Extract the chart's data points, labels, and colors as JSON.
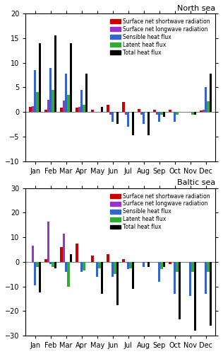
{
  "months": [
    "Jan",
    "Feb",
    "Mar",
    "Apr",
    "May",
    "Jun",
    "Jul",
    "Aug",
    "Sep",
    "Oct",
    "Nov",
    "Dec"
  ],
  "north_sea": {
    "shortwave": [
      1.0,
      0.5,
      0.8,
      0.9,
      0.5,
      1.5,
      2.0,
      0.6,
      0.5,
      0.4,
      0.0,
      0.3
    ],
    "longwave": [
      1.2,
      2.5,
      2.3,
      1.0,
      0.0,
      -0.5,
      -0.5,
      -0.5,
      -0.5,
      0.0,
      0.0,
      0.5
    ],
    "sensible": [
      8.5,
      9.0,
      7.8,
      4.5,
      0.0,
      -2.0,
      -3.0,
      -2.5,
      -2.0,
      -2.0,
      0.0,
      5.0
    ],
    "latent": [
      4.0,
      4.5,
      3.5,
      1.5,
      0.0,
      0.0,
      0.0,
      0.0,
      -0.5,
      -0.5,
      -0.5,
      2.2
    ],
    "total": [
      14.0,
      15.5,
      14.0,
      7.8,
      1.0,
      -2.5,
      -4.8,
      -4.8,
      -1.0,
      0.0,
      -0.5,
      7.8
    ]
  },
  "baltic_sea": {
    "shortwave": [
      0.0,
      1.0,
      6.0,
      7.5,
      2.5,
      3.0,
      1.0,
      0.0,
      0.0,
      -1.0,
      0.0,
      0.0
    ],
    "longwave": [
      6.5,
      16.5,
      11.5,
      0.0,
      0.0,
      0.0,
      0.0,
      0.0,
      0.0,
      0.0,
      0.0,
      0.0
    ],
    "sensible": [
      -9.5,
      -1.0,
      -4.0,
      -4.0,
      -6.0,
      -6.0,
      -3.0,
      -2.0,
      -8.0,
      -13.0,
      -14.0,
      -13.0
    ],
    "latent": [
      -2.0,
      -2.0,
      -10.0,
      -3.5,
      -2.5,
      -5.0,
      -2.5,
      0.0,
      -3.0,
      -4.0,
      -4.0,
      -4.0
    ],
    "total": [
      -12.5,
      -2.5,
      3.0,
      0.0,
      -13.0,
      -17.5,
      -11.0,
      -2.0,
      -2.0,
      -23.5,
      -28.0,
      -26.0
    ]
  },
  "colors": {
    "shortwave": "#cc0000",
    "longwave": "#9933cc",
    "sensible": "#3366cc",
    "latent": "#33aa33",
    "total": "#000000"
  },
  "north_ylim": [
    -10,
    20
  ],
  "north_yticks": [
    -10,
    -5,
    0,
    5,
    10,
    15,
    20
  ],
  "baltic_ylim": [
    -30,
    30
  ],
  "baltic_yticks": [
    -30,
    -20,
    -10,
    0,
    10,
    20,
    30
  ],
  "title_north": "North sea",
  "title_baltic": "Baltic sea",
  "legend_labels": [
    "Surface net shortwave radiation",
    "Surface net longwave radiation",
    "Sensible heat flux",
    "Latent heat flux",
    "Total heat flux"
  ]
}
